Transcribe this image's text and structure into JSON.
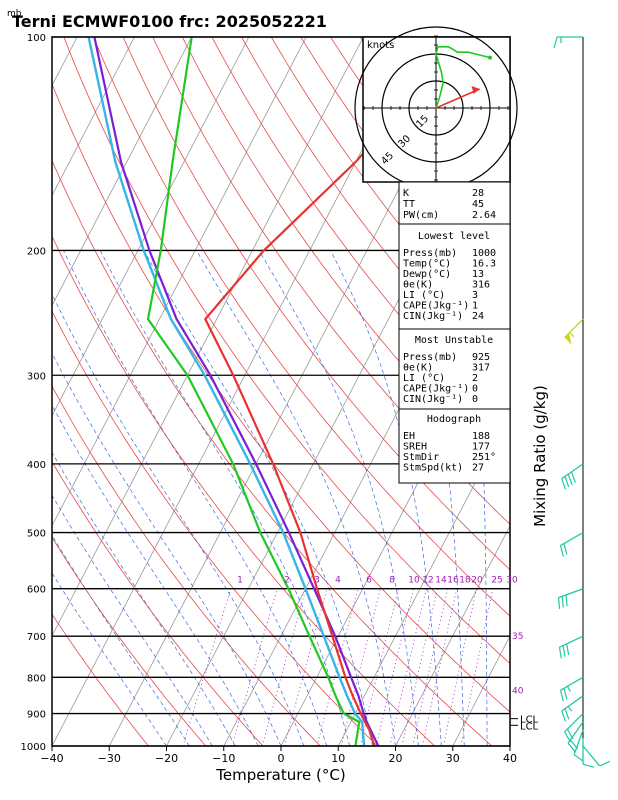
{
  "header": {
    "unit_label": "mb",
    "title": "Terni ECMWF0100  frc: 2025052221"
  },
  "axes": {
    "xlabel": "Temperature (°C)",
    "right_label": "Mixing Ratio  (g/kg)"
  },
  "colors": {
    "temperature": "#e8322e",
    "dewpoint": "#22c822",
    "parcel": "#7a1fd6",
    "wetbulb": "#36b6e6",
    "wind": "#22c8a0",
    "mixing_ratio_label": "#9a1fb4",
    "isotherm": "#999999",
    "dry_adiabat": "#e84a4a",
    "moist_adiabat": "#3a6adf"
  },
  "chart_data": {
    "type": "line",
    "title": "Terni ECMWF0100  frc: 2025052221",
    "xlabel": "Temperature (°C)",
    "ylabel": "mb",
    "xlim": [
      -40,
      40
    ],
    "ylim": [
      1000,
      100
    ],
    "y_scale": "log-pressure",
    "x_ticks": [
      "−40",
      "−30",
      "−20",
      "−10",
      "0",
      "10",
      "20",
      "30",
      "40"
    ],
    "pressure_ticks": [
      "100",
      "200",
      "300",
      "400",
      "500",
      "600",
      "700",
      "800",
      "900",
      "1000"
    ],
    "mixing_ratio_labels": [
      "1",
      "2",
      "3",
      "4",
      "6",
      "8",
      "10",
      "12",
      "14",
      "16",
      "18",
      "20",
      "25",
      "30"
    ],
    "theta_e_labels": [
      "30",
      "35",
      "40"
    ],
    "lcl_labels": [
      "LCL",
      "LCL"
    ],
    "series": [
      {
        "key": "temperature",
        "points": [
          [
            1000,
            16.3
          ],
          [
            950,
            14
          ],
          [
            925,
            12.5
          ],
          [
            900,
            11
          ],
          [
            850,
            8
          ],
          [
            800,
            5
          ],
          [
            700,
            -1
          ],
          [
            600,
            -8
          ],
          [
            500,
            -16
          ],
          [
            400,
            -27
          ],
          [
            300,
            -42
          ],
          [
            250,
            -52
          ],
          [
            200,
            -48
          ],
          [
            150,
            -40
          ],
          [
            100,
            -32
          ]
        ]
      },
      {
        "key": "dewpoint",
        "points": [
          [
            1000,
            13
          ],
          [
            950,
            12
          ],
          [
            925,
            11.5
          ],
          [
            900,
            8
          ],
          [
            850,
            5
          ],
          [
            800,
            2
          ],
          [
            700,
            -5
          ],
          [
            600,
            -13
          ],
          [
            500,
            -23
          ],
          [
            400,
            -34
          ],
          [
            300,
            -50
          ],
          [
            250,
            -62
          ],
          [
            200,
            -66
          ],
          [
            150,
            -72
          ],
          [
            100,
            -80
          ]
        ]
      },
      {
        "key": "parcel",
        "points": [
          [
            1000,
            17
          ],
          [
            925,
            12.8
          ],
          [
            900,
            11.5
          ],
          [
            850,
            9
          ],
          [
            800,
            6
          ],
          [
            700,
            -0.5
          ],
          [
            600,
            -8.5
          ],
          [
            500,
            -18
          ],
          [
            400,
            -30
          ],
          [
            300,
            -46
          ],
          [
            250,
            -57
          ],
          [
            200,
            -68
          ],
          [
            150,
            -81
          ],
          [
            100,
            -97
          ]
        ]
      },
      {
        "key": "wetbulb",
        "points": [
          [
            1000,
            14.5
          ],
          [
            925,
            12
          ],
          [
            900,
            10
          ],
          [
            850,
            7
          ],
          [
            800,
            4
          ],
          [
            700,
            -2.5
          ],
          [
            600,
            -10
          ],
          [
            500,
            -19
          ],
          [
            400,
            -31
          ],
          [
            300,
            -47
          ],
          [
            250,
            -58
          ],
          [
            200,
            -69
          ],
          [
            150,
            -82
          ],
          [
            100,
            -98
          ]
        ]
      }
    ],
    "winds": [
      {
        "p": 1000,
        "dir": 140,
        "kt": 8
      },
      {
        "p": 975,
        "dir": 180,
        "kt": 10
      },
      {
        "p": 950,
        "dir": 200,
        "kt": 12
      },
      {
        "p": 925,
        "dir": 215,
        "kt": 18
      },
      {
        "p": 900,
        "dir": 225,
        "kt": 22
      },
      {
        "p": 850,
        "dir": 235,
        "kt": 25
      },
      {
        "p": 800,
        "dir": 240,
        "kt": 25
      },
      {
        "p": 700,
        "dir": 245,
        "kt": 28
      },
      {
        "p": 600,
        "dir": 250,
        "kt": 28
      },
      {
        "p": 500,
        "dir": 240,
        "kt": 22
      },
      {
        "p": 400,
        "dir": 235,
        "kt": 38
      },
      {
        "p": 250,
        "dir": 225,
        "kt": 55
      },
      {
        "p": 100,
        "dir": 270,
        "kt": 15
      }
    ]
  },
  "hodograph": {
    "unit": "knots",
    "rings": [
      "15",
      "30",
      "45"
    ],
    "trace": [
      [
        0,
        0
      ],
      [
        2,
        6
      ],
      [
        4,
        14
      ],
      [
        3,
        20
      ],
      [
        0,
        30
      ],
      [
        1,
        34
      ],
      [
        7,
        34
      ],
      [
        12,
        31
      ],
      [
        18,
        31
      ],
      [
        22,
        30
      ],
      [
        30,
        28
      ]
    ],
    "storm_motion": {
      "dir": 251,
      "kt": 27
    }
  },
  "indices": {
    "top": [
      {
        "label": "K",
        "value": "28"
      },
      {
        "label": "TT",
        "value": "45"
      },
      {
        "label": "PW(cm)",
        "value": "2.64"
      }
    ],
    "lowest": {
      "header": "Lowest level",
      "rows": [
        {
          "label": "Press(mb)",
          "value": "1000"
        },
        {
          "label": "Temp(°C)",
          "value": "16.3"
        },
        {
          "label": "Dewp(°C)",
          "value": "13"
        },
        {
          "label": "θe(K)",
          "value": "316"
        },
        {
          "label": "LI (°C)",
          "value": "3"
        },
        {
          "label": "CAPE(Jkg⁻¹)",
          "value": "1"
        },
        {
          "label": "CIN(Jkg⁻¹)",
          "value": "24"
        }
      ]
    },
    "mu": {
      "header": "Most Unstable",
      "rows": [
        {
          "label": "Press(mb)",
          "value": "925"
        },
        {
          "label": "θe(K)",
          "value": "317"
        },
        {
          "label": "LI (°C)",
          "value": "2"
        },
        {
          "label": "CAPE(Jkg⁻¹)",
          "value": "0"
        },
        {
          "label": "CIN(Jkg⁻¹)",
          "value": "0"
        }
      ]
    },
    "hodo": {
      "header": "Hodograph",
      "rows": [
        {
          "label": "EH",
          "value": "188"
        },
        {
          "label": "SREH",
          "value": "177"
        },
        {
          "label": "StmDir",
          "value": "251°"
        },
        {
          "label": "StmSpd(kt)",
          "value": "27"
        }
      ]
    }
  }
}
